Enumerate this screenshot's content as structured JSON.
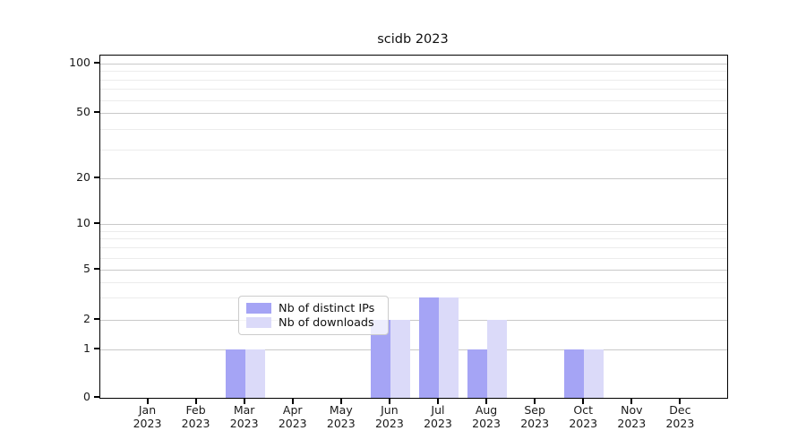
{
  "chart_data": {
    "type": "bar",
    "title": "scidb 2023",
    "year_label": "2023",
    "categories": [
      "Jan",
      "Feb",
      "Mar",
      "Apr",
      "May",
      "Jun",
      "Jul",
      "Aug",
      "Sep",
      "Oct",
      "Nov",
      "Dec"
    ],
    "series": [
      {
        "name": "Nb of distinct IPs",
        "color": "#a5a4f5",
        "values": [
          0,
          0,
          1,
          0,
          0,
          2,
          3,
          1,
          0,
          1,
          0,
          0
        ]
      },
      {
        "name": "Nb of downloads",
        "color": "#dbdaf9",
        "values": [
          0,
          0,
          1,
          0,
          0,
          2,
          3,
          2,
          0,
          1,
          0,
          0
        ]
      }
    ],
    "scale": "symlog",
    "y_ticks": [
      0,
      1,
      2,
      5,
      10,
      20,
      50,
      100
    ],
    "y_minor_gridlines": [
      3,
      4,
      6,
      7,
      8,
      9,
      30,
      40,
      60,
      70,
      80,
      90
    ],
    "ylim": [
      0,
      100
    ],
    "grid": true,
    "legend_position": "bottom-center",
    "colors": {
      "axis": "#000000",
      "grid_major": "#c9c9c9",
      "grid_minor": "#ececec",
      "background": "#ffffff"
    }
  }
}
